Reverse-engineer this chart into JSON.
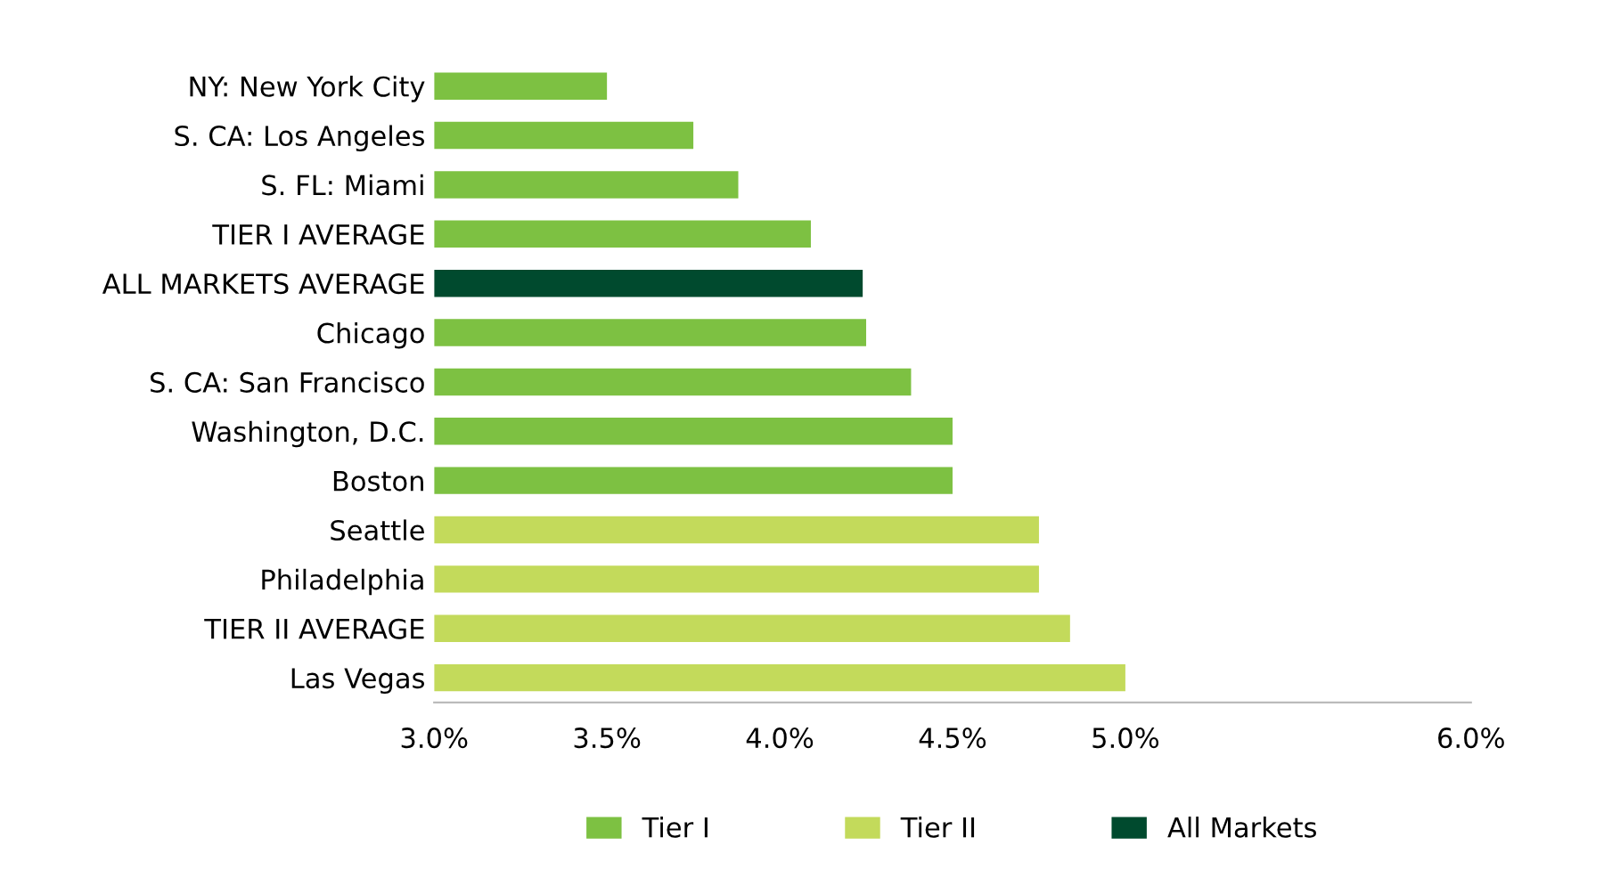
{
  "chart_data": {
    "type": "bar",
    "orientation": "horizontal",
    "categories": [
      "NY: New York City",
      "S. CA: Los Angeles",
      "S. FL: Miami",
      "TIER I AVERAGE",
      "ALL MARKETS AVERAGE",
      "Chicago",
      "S. CA: San Francisco",
      "Washington, D.C.",
      "Boston",
      "Seattle",
      "Philadelphia",
      "TIER II AVERAGE",
      "Las Vegas"
    ],
    "series": [
      {
        "name": "Tier I",
        "color": "#7dc142",
        "values": [
          3.5,
          3.75,
          3.88,
          4.09,
          null,
          4.25,
          4.38,
          4.5,
          4.5,
          null,
          null,
          null,
          null
        ]
      },
      {
        "name": "Tier II",
        "color": "#c3da5b",
        "values": [
          null,
          null,
          null,
          null,
          null,
          null,
          null,
          null,
          null,
          4.75,
          4.75,
          4.84,
          5.0
        ]
      },
      {
        "name": "All Markets",
        "color": "#004a2e",
        "values": [
          null,
          null,
          null,
          null,
          4.24,
          null,
          null,
          null,
          null,
          null,
          null,
          null,
          null
        ]
      }
    ],
    "xlim": [
      3.0,
      6.0
    ],
    "xticks": [
      {
        "value": 3.0,
        "label": "3.0%"
      },
      {
        "value": 3.5,
        "label": "3.5%"
      },
      {
        "value": 4.0,
        "label": "4.0%"
      },
      {
        "value": 4.5,
        "label": "4.5%"
      },
      {
        "value": 5.0,
        "label": "5.0%"
      },
      {
        "value": 6.0,
        "label": "6.0%"
      }
    ],
    "grid": false,
    "legend": "bottom"
  }
}
